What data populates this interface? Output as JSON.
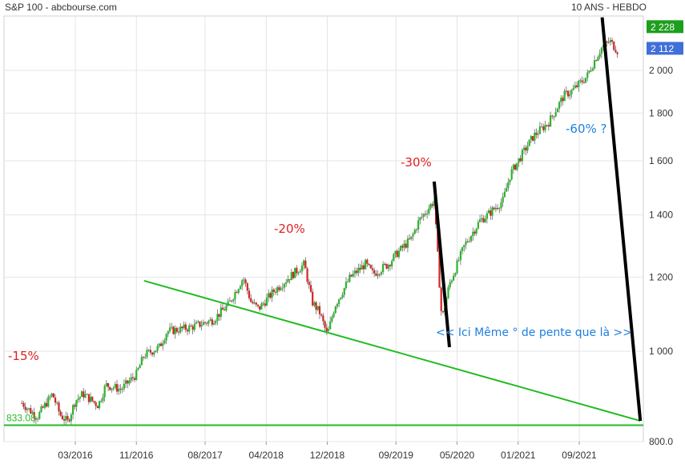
{
  "header": {
    "left_title": "S&P 100 - abcbourse.com",
    "right_title": "10 ANS - HEBDO"
  },
  "chart_data": {
    "type": "candlestick",
    "title": "S&P 100 - abcbourse.com",
    "subtitle": "10 ANS - HEBDO",
    "y_scale": "log",
    "ylim": [
      800,
      2280
    ],
    "y_ticks": [
      800,
      1000,
      1200,
      1400,
      1600,
      1800,
      2000
    ],
    "y_tick_labels": [
      "800.0",
      "1 000",
      "1 200",
      "1 400",
      "1 600",
      "1 800",
      "2 000"
    ],
    "x_tick_labels": [
      "03/2016",
      "11/2016",
      "08/2017",
      "04/2018",
      "12/2018",
      "09/2019",
      "05/2020",
      "01/2021",
      "09/2021"
    ],
    "grid": true,
    "price_tags": [
      {
        "label": "2 228",
        "value": 2228,
        "color": "#1e9e1e"
      },
      {
        "label": "2 112",
        "value": 2112,
        "color": "#3f6fd8"
      }
    ],
    "support_level": {
      "label": "833.08",
      "value": 833.08,
      "color": "#22bb22"
    },
    "close_series": {
      "x": [
        "2015-08",
        "2015-10",
        "2015-12",
        "2016-01",
        "2016-02",
        "2016-03",
        "2016-04",
        "2016-06",
        "2016-07",
        "2016-09",
        "2016-11",
        "2016-12",
        "2017-02",
        "2017-03",
        "2017-06",
        "2017-09",
        "2017-11",
        "2018-01",
        "2018-02",
        "2018-03",
        "2018-05",
        "2018-07",
        "2018-09",
        "2018-10",
        "2018-11",
        "2018-12",
        "2019-01",
        "2019-03",
        "2019-05",
        "2019-06",
        "2019-08",
        "2019-09",
        "2019-11",
        "2019-12",
        "2020-02",
        "2020-03",
        "2020-04",
        "2020-06",
        "2020-08",
        "2020-09",
        "2020-11",
        "2020-12",
        "2021-02",
        "2021-03",
        "2021-05",
        "2021-07",
        "2021-08",
        "2021-10",
        "2021-11",
        "2021-12",
        "2022-01",
        "2022-02"
      ],
      "values": [
        880,
        850,
        900,
        855,
        840,
        885,
        900,
        875,
        920,
        910,
        945,
        990,
        1010,
        1050,
        1060,
        1080,
        1120,
        1200,
        1130,
        1110,
        1160,
        1200,
        1240,
        1130,
        1100,
        1040,
        1120,
        1200,
        1240,
        1210,
        1240,
        1270,
        1320,
        1380,
        1450,
        1080,
        1180,
        1300,
        1380,
        1400,
        1450,
        1550,
        1650,
        1700,
        1760,
        1880,
        1900,
        1970,
        2050,
        2120,
        2150,
        2100
      ]
    },
    "trendlines": [
      {
        "name": "support",
        "color": "#22bb22",
        "from": {
          "x": "2016-12",
          "y": 1190
        },
        "to": {
          "x": "2022-05",
          "y": 842
        }
      },
      {
        "name": "drop-2020",
        "color": "#000000",
        "from": {
          "x": "2020-02",
          "y": 1520
        },
        "to": {
          "x": "2020-04",
          "y": 1010
        }
      },
      {
        "name": "drop-2022",
        "color": "#000000",
        "from": {
          "x": "2021-12",
          "y": 2280
        },
        "to": {
          "x": "2022-05",
          "y": 842
        }
      }
    ],
    "annotations": [
      {
        "text": "-15%",
        "color": "#e02020"
      },
      {
        "text": "-20%",
        "color": "#e02020"
      },
      {
        "text": "-30%",
        "color": "#e02020"
      },
      {
        "text": "-60% ?",
        "color": "#2080e0"
      },
      {
        "text": "<< Ici Même ° de pente que là >>",
        "color": "#2080e0"
      }
    ]
  }
}
